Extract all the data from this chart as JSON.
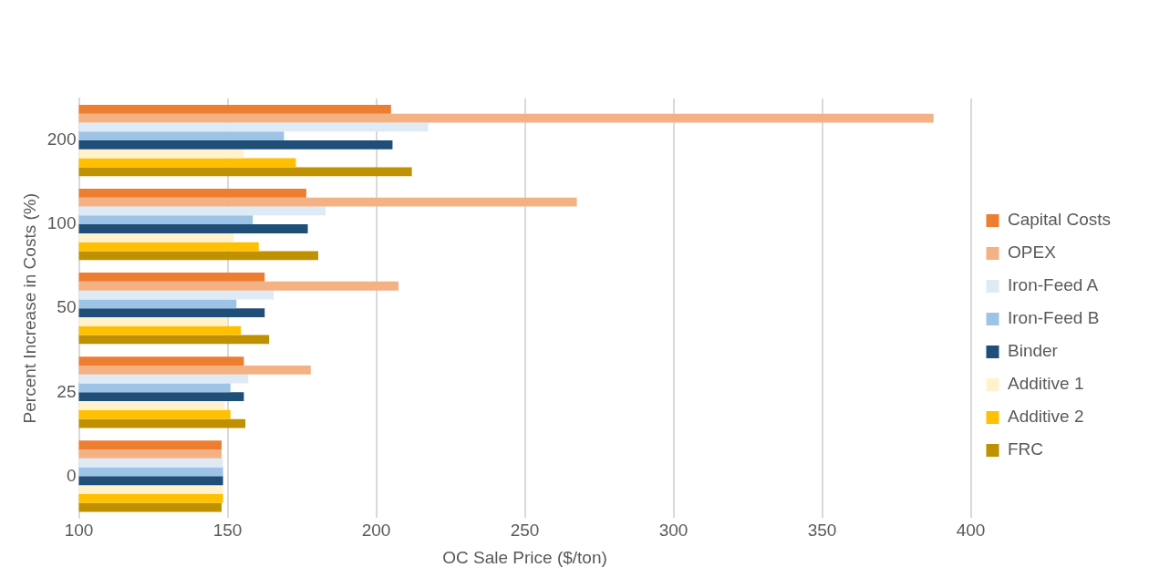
{
  "chart_data": {
    "type": "bar",
    "orientation": "horizontal",
    "xlabel": "OC Sale Price ($/ton)",
    "ylabel": "Percent Increase in Costs (%)",
    "categories": [
      "200",
      "100",
      "50",
      "25",
      "0"
    ],
    "series": [
      {
        "name": "Capital Costs",
        "color": "#ed7d31",
        "values": [
          205,
          176.5,
          162.5,
          155.5,
          148
        ]
      },
      {
        "name": "OPEX",
        "color": "#f4b183",
        "values": [
          387.5,
          267.5,
          207.5,
          178,
          148
        ]
      },
      {
        "name": "Iron-Feed A",
        "color": "#deebf7",
        "values": [
          217.5,
          183,
          165.5,
          157,
          148.5
        ]
      },
      {
        "name": "Iron-Feed B",
        "color": "#9dc3e6",
        "values": [
          169,
          158.5,
          153,
          151,
          148.5
        ]
      },
      {
        "name": "Binder",
        "color": "#1f4e79",
        "values": [
          205.5,
          177,
          162.5,
          155.5,
          148.5
        ]
      },
      {
        "name": "Additive 1",
        "color": "#fff2cc",
        "values": [
          155.5,
          152,
          150,
          149,
          148.5
        ]
      },
      {
        "name": "Additive 2",
        "color": "#ffc000",
        "values": [
          173,
          160.5,
          154.5,
          151,
          148.5
        ]
      },
      {
        "name": "FRC",
        "color": "#bf9000",
        "values": [
          212,
          180.5,
          164,
          156,
          148
        ]
      }
    ],
    "xlim": [
      100,
      400
    ],
    "xticks": [
      100,
      150,
      200,
      250,
      300,
      350,
      400
    ],
    "grid": "x",
    "legend": "right"
  }
}
